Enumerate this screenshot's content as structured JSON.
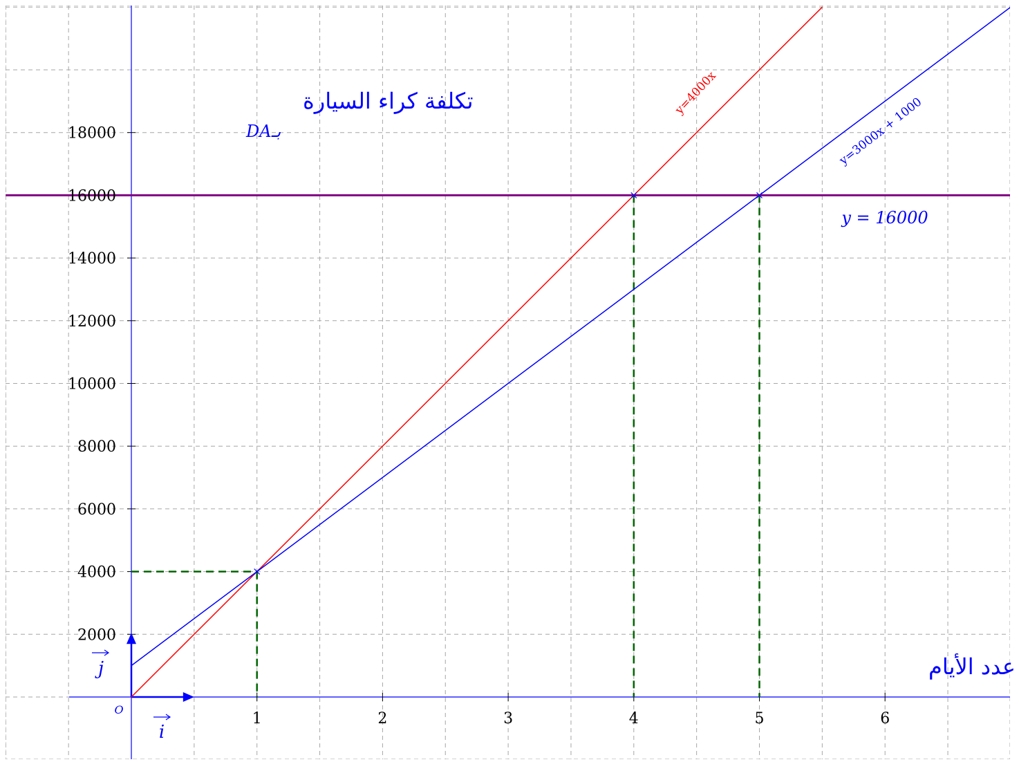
{
  "chart_data": {
    "type": "line",
    "x_ticks": [
      "1",
      "2",
      "3",
      "4",
      "5",
      "6"
    ],
    "y_ticks": [
      "2000",
      "4000",
      "6000",
      "8000",
      "10000",
      "12000",
      "14000",
      "16000",
      "18000"
    ],
    "xlim": [
      -1,
      7
    ],
    "ylim": [
      -2000,
      20000
    ],
    "grid": true,
    "origin_label": "O",
    "unit_vector_i": "i",
    "unit_vector_j": "j",
    "y_axis_title": "تكلفة كراء السيارة",
    "y_axis_unit": "بـDA",
    "x_axis_title": "عدد الأيام",
    "series": [
      {
        "name": "y=4000x",
        "color": "#ff0000",
        "slope": 4000,
        "intercept": 0,
        "x_range": [
          0,
          5.5
        ]
      },
      {
        "name": "y=3000x + 1000",
        "color": "#0000ff",
        "slope": 3000,
        "intercept": 1000,
        "x_range": [
          0,
          7
        ]
      },
      {
        "name": "y = 16000",
        "color": "#800080",
        "slope": 0,
        "intercept": 16000,
        "x_range": [
          -1,
          7
        ]
      }
    ],
    "intersections": [
      {
        "x": 1,
        "y": 4000
      },
      {
        "x": 4,
        "y": 16000
      },
      {
        "x": 5,
        "y": 16000
      }
    ],
    "colors": {
      "grid": "#a6a6a6",
      "axes": "#0000ff",
      "guides": "#006400",
      "tick_text": "#000000"
    }
  }
}
